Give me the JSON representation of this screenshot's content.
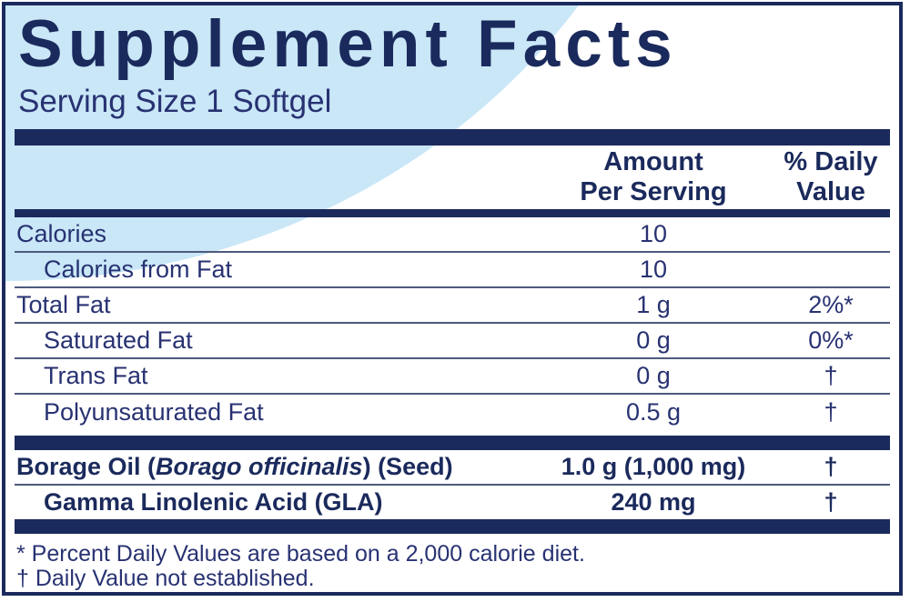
{
  "label": {
    "title": "Supplement Facts",
    "serving_size": "Serving Size 1 Softgel",
    "header": {
      "amount_line1": "Amount",
      "amount_line2": "Per Serving",
      "dv_line1": "% Daily",
      "dv_line2": "Value"
    },
    "rows": [
      {
        "indent": false,
        "bold": false,
        "parts": [
          {
            "text": "Calories"
          }
        ],
        "amount": "10",
        "dv": ""
      },
      {
        "indent": true,
        "bold": false,
        "parts": [
          {
            "text": "Calories from Fat"
          }
        ],
        "amount": "10",
        "dv": ""
      },
      {
        "indent": false,
        "bold": false,
        "parts": [
          {
            "text": "Total Fat"
          }
        ],
        "amount": "1 g",
        "dv": "2%*"
      },
      {
        "indent": true,
        "bold": false,
        "parts": [
          {
            "text": "Saturated Fat"
          }
        ],
        "amount": "0 g",
        "dv": "0%*"
      },
      {
        "indent": true,
        "bold": false,
        "parts": [
          {
            "text": "Trans Fat"
          }
        ],
        "amount": "0 g",
        "dv": "†"
      },
      {
        "indent": true,
        "bold": false,
        "parts": [
          {
            "text": "Polyunsaturated Fat"
          }
        ],
        "amount": "0.5 g",
        "dv": "†"
      }
    ],
    "ingredient_rows": [
      {
        "indent": false,
        "bold": true,
        "parts": [
          {
            "text": "Borage Oil ("
          },
          {
            "text": "Borago officinalis",
            "italic": true
          },
          {
            "text": ") (Seed)"
          }
        ],
        "amount": "1.0 g (1,000 mg)",
        "dv": "†"
      },
      {
        "indent": true,
        "bold": true,
        "parts": [
          {
            "text": "Gamma Linolenic Acid (GLA)"
          }
        ],
        "amount": "240 mg",
        "dv": "†"
      }
    ],
    "footnotes": [
      "* Percent Daily Values are based on a 2,000 calorie diet.",
      "† Daily Value not established."
    ],
    "colors": {
      "navy": "#1b2a5c",
      "text_navy": "#283272",
      "light_blue": "#c9e7f7",
      "separator": "#4d5a7d"
    }
  }
}
